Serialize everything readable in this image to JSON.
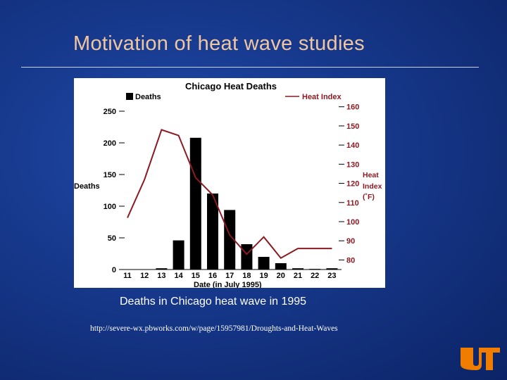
{
  "slide": {
    "title": "Motivation of heat wave studies",
    "caption": "Deaths in Chicago heat wave in 1995",
    "source_url": "http://severe-wx.pbworks.com/w/page/15957981/Droughts-and-Heat-Waves"
  },
  "colors": {
    "title": "#f0c6a0",
    "heat_index_line": "#8b1a22",
    "bars": "#000000",
    "logo": "#f07d00"
  },
  "chart_data": {
    "type": "bar",
    "title": "Chicago Heat Deaths",
    "xlabel": "Date (in July 1995)",
    "ylabel": "Deaths",
    "y2label_lines": [
      "Heat",
      "Index",
      "(˚F)"
    ],
    "ylim": [
      0,
      260
    ],
    "y2lim": [
      75,
      161
    ],
    "legend": {
      "bars": "Deaths",
      "line": "Heat Index"
    },
    "categories": [
      "11",
      "12",
      "13",
      "14",
      "15",
      "16",
      "17",
      "18",
      "19",
      "20",
      "21",
      "22",
      "23"
    ],
    "yticks": [
      "0",
      "50",
      "100",
      "150",
      "200",
      "250"
    ],
    "yticks_values": [
      0,
      50,
      100,
      150,
      200,
      250
    ],
    "y2ticks": [
      "80",
      "90",
      "100",
      "110",
      "120",
      "130",
      "140",
      "150",
      "160"
    ],
    "y2ticks_values": [
      80,
      90,
      100,
      110,
      120,
      130,
      140,
      150,
      160
    ],
    "series": [
      {
        "name": "Deaths",
        "kind": "bar",
        "values": [
          0,
          0,
          2,
          46,
          208,
          120,
          94,
          40,
          20,
          10,
          2,
          1,
          2
        ]
      },
      {
        "name": "Heat Index",
        "kind": "line",
        "values": [
          102,
          122,
          148,
          145,
          123,
          114,
          93,
          83,
          92,
          81,
          86,
          86,
          86
        ]
      }
    ]
  }
}
